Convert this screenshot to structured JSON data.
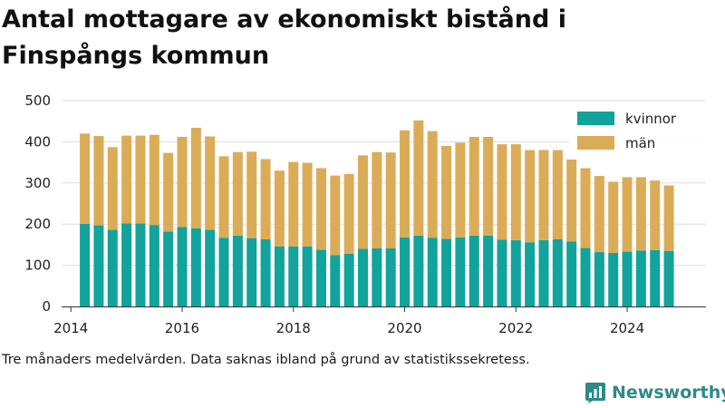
{
  "title": "Antal mottagare av ekonomiskt bistånd i Finspångs kommun",
  "note": "Tre månaders medelvärden. Data saknas ibland på grund av statistikssekretess.",
  "brand": {
    "name": "Newsworthy",
    "icon": "newsworthy-logo-icon"
  },
  "colors": {
    "kvinnor": "#11a39c",
    "man": "#dbac58",
    "grid": "#dddddd",
    "brand": "#2d8a89"
  },
  "chart_data": {
    "type": "bar",
    "stacked": true,
    "title": "Antal mottagare av ekonomiskt bistånd i Finspångs kommun",
    "xlabel": "",
    "ylabel": "",
    "ylim": [
      0,
      500
    ],
    "yticks": [
      0,
      100,
      200,
      300,
      400,
      500
    ],
    "xticks": [
      2014,
      2016,
      2018,
      2020,
      2022,
      2024
    ],
    "xlim": [
      "2013-11",
      "2025-06"
    ],
    "grid": true,
    "legend": "top-right",
    "x": [
      "2014-04",
      "2014-07",
      "2014-10",
      "2015-01",
      "2015-04",
      "2015-07",
      "2015-10",
      "2016-01",
      "2016-04",
      "2016-07",
      "2016-10",
      "2017-01",
      "2017-04",
      "2017-07",
      "2017-10",
      "2018-01",
      "2018-04",
      "2018-07",
      "2018-10",
      "2019-01",
      "2019-04",
      "2019-07",
      "2019-10",
      "2020-01",
      "2020-04",
      "2020-07",
      "2020-10",
      "2021-01",
      "2021-04",
      "2021-07",
      "2021-10",
      "2022-01",
      "2022-04",
      "2022-07",
      "2022-10",
      "2023-01",
      "2023-04",
      "2023-07",
      "2023-10",
      "2024-01",
      "2024-04",
      "2024-07",
      "2024-10"
    ],
    "series": [
      {
        "name": "kvinnor",
        "values": [
          201,
          197,
          186,
          202,
          202,
          198,
          182,
          193,
          190,
          186,
          167,
          172,
          166,
          163,
          146,
          146,
          146,
          138,
          125,
          128,
          140,
          141,
          141,
          168,
          172,
          167,
          164,
          168,
          172,
          172,
          162,
          161,
          156,
          161,
          163,
          158,
          142,
          132,
          130,
          133,
          136,
          137,
          135
        ]
      },
      {
        "name": "män",
        "values": [
          219,
          217,
          201,
          213,
          213,
          219,
          191,
          219,
          244,
          227,
          198,
          203,
          210,
          195,
          184,
          205,
          203,
          198,
          193,
          194,
          227,
          234,
          233,
          260,
          280,
          259,
          226,
          230,
          240,
          240,
          232,
          233,
          224,
          219,
          217,
          199,
          194,
          185,
          173,
          181,
          178,
          169,
          159
        ]
      }
    ]
  }
}
